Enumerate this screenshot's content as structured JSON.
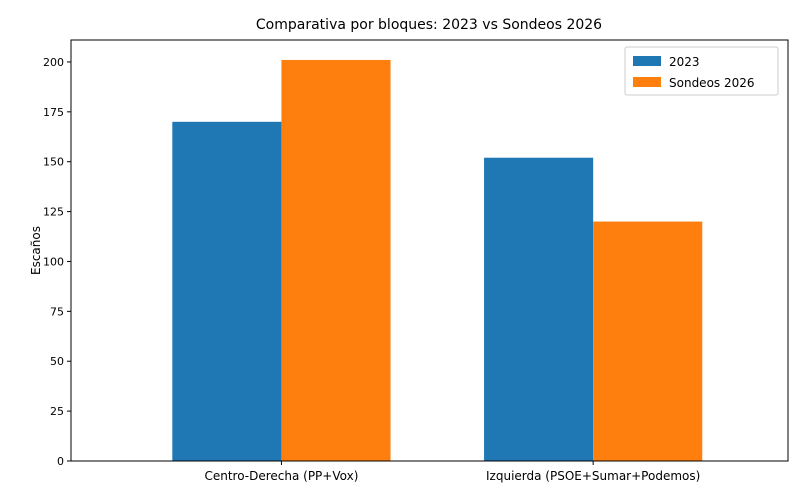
{
  "chart_data": {
    "type": "bar",
    "title": "Comparativa por bloques: 2023 vs Sondeos 2026",
    "xlabel": "",
    "ylabel": "Escaños",
    "categories": [
      "Centro-Derecha (PP+Vox)",
      "Izquierda (PSOE+Sumar+Podemos)"
    ],
    "series": [
      {
        "name": "2023",
        "values": [
          170,
          152
        ],
        "color": "#1f77b4"
      },
      {
        "name": "Sondeos 2026",
        "values": [
          201,
          120
        ],
        "color": "#ff7f0e"
      }
    ],
    "ylim": [
      0,
      211
    ],
    "yticks": [
      0,
      25,
      50,
      75,
      100,
      125,
      150,
      175,
      200
    ],
    "grid": false,
    "legend_position": "top-right"
  }
}
